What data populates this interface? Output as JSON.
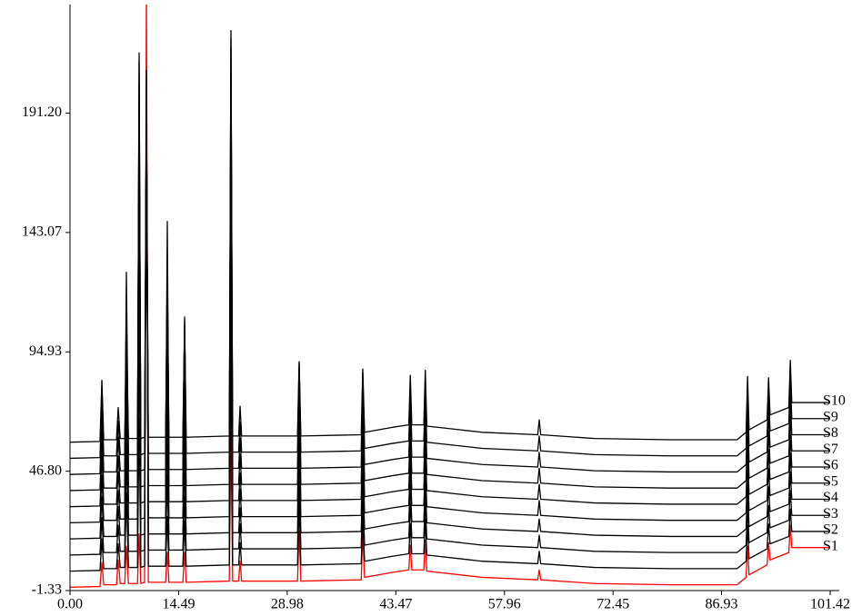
{
  "chart_data": {
    "type": "line",
    "x": [
      0,
      4,
      4.25,
      4.5,
      6.2,
      6.43,
      6.7,
      7.3,
      7.52,
      7.8,
      9,
      9.22,
      9.45,
      9.95,
      10.19,
      10.45,
      12.75,
      12.98,
      13.2,
      15.05,
      15.29,
      15.5,
      21.25,
      21.47,
      21.7,
      22.5,
      22.69,
      22.9,
      30.35,
      30.57,
      30.8,
      38.85,
      39.06,
      39.3,
      43,
      45.2,
      45.4,
      45.6,
      47.2,
      47.4,
      47.6,
      55,
      62.4,
      62.6,
      62.8,
      70,
      80,
      89,
      90.2,
      90.4,
      90.6,
      93,
      93.2,
      93.4,
      95.9,
      96.1,
      96.3,
      98,
      101.42
    ],
    "series": [
      {
        "name": "S1",
        "color": "#ff0000",
        "values": [
          0,
          0.3,
          10,
          1,
          1,
          11,
          1.5,
          1.5,
          16.5,
          1.5,
          1.5,
          21.5,
          1.5,
          2,
          242,
          2,
          2,
          14,
          2,
          2,
          14,
          2,
          2.5,
          62.5,
          2.5,
          2.5,
          10.5,
          2.5,
          2.5,
          22.5,
          2.5,
          3,
          21.5,
          4,
          6,
          7,
          17,
          7,
          7,
          19,
          6.5,
          4,
          3,
          7,
          3,
          1.5,
          1,
          1,
          4,
          16.5,
          5,
          9,
          18,
          11,
          14,
          25,
          16,
          16,
          16
        ]
      },
      {
        "name": "S2",
        "color": "#000000",
        "values": [
          6.5,
          6.8,
          19.5,
          7.5,
          7.5,
          17.5,
          8,
          8,
          38,
          8,
          8,
          68,
          8,
          8.5,
          208.5,
          8.5,
          8.5,
          28.5,
          8.5,
          8.5,
          26.5,
          8.5,
          9,
          99,
          9,
          9,
          18,
          9,
          9,
          34,
          9,
          9.5,
          30,
          10.5,
          12.5,
          13.5,
          25.5,
          13.5,
          13.5,
          27.5,
          13,
          10.5,
          9.5,
          14.5,
          9.5,
          8,
          7.5,
          7.5,
          10.5,
          25,
          11.5,
          15.5,
          25.5,
          17.5,
          20.5,
          31.5,
          22.5,
          22.5,
          22.5
        ]
      },
      {
        "name": "S3",
        "color": "#000000",
        "values": [
          13,
          13.3,
          28,
          14,
          14,
          25,
          14.5,
          14.5,
          54.5,
          14.5,
          14.5,
          104.5,
          14.5,
          15,
          205,
          15,
          15,
          45,
          15,
          15,
          37,
          15,
          15.5,
          125.5,
          15.5,
          15.5,
          25.5,
          15.5,
          15.5,
          43.5,
          15.5,
          16,
          38.5,
          17,
          19,
          20,
          34,
          20,
          20,
          35,
          19.5,
          17,
          16,
          21,
          16,
          14.5,
          14,
          14,
          17,
          32.5,
          18,
          22,
          33,
          24,
          27,
          39,
          29,
          29,
          29
        ]
      },
      {
        "name": "S4",
        "color": "#000000",
        "values": [
          19.5,
          19.8,
          36.5,
          20.5,
          20.5,
          32.5,
          21,
          21,
          71,
          21,
          21,
          141,
          21,
          21.5,
          201.5,
          21.5,
          21.5,
          61.5,
          21.5,
          21.5,
          49.5,
          21.5,
          22,
          152,
          22,
          22,
          32,
          22,
          22,
          52,
          22,
          22.5,
          47,
          23.5,
          25.5,
          26.5,
          41.5,
          26.5,
          26.5,
          42.5,
          26,
          23.5,
          22.5,
          27.5,
          22.5,
          21,
          20.5,
          20.5,
          23.5,
          40,
          24.5,
          28.5,
          40.5,
          30.5,
          33.5,
          46.5,
          35.5,
          35.5,
          35.5
        ]
      },
      {
        "name": "S5",
        "color": "#000000",
        "values": [
          26,
          26.3,
          45,
          27,
          27,
          39,
          27.5,
          27.5,
          87.5,
          27.5,
          27.5,
          167.5,
          27.5,
          28,
          198,
          28,
          28,
          83,
          28,
          28,
          63,
          28,
          28.5,
          178.5,
          28.5,
          28.5,
          39.5,
          28.5,
          28.5,
          60.5,
          28.5,
          29,
          55.5,
          30,
          32,
          33,
          49,
          33,
          33,
          50,
          32.5,
          30,
          29,
          35,
          29,
          27.5,
          27,
          27,
          30,
          47.5,
          31,
          35,
          48,
          37,
          40,
          54,
          42,
          42,
          42
        ]
      },
      {
        "name": "S6",
        "color": "#000000",
        "values": [
          32.5,
          32.8,
          53.5,
          33.5,
          33.5,
          46.5,
          34,
          34,
          104,
          34,
          34,
          194,
          34,
          34.5,
          194.5,
          34.5,
          34.5,
          104.5,
          34.5,
          34.5,
          79.5,
          34.5,
          35,
          200,
          35,
          35,
          46,
          35,
          35,
          69,
          35,
          35.5,
          64,
          36.5,
          38.5,
          39.5,
          56.5,
          39.5,
          39.5,
          57.5,
          39,
          36.5,
          35.5,
          41.5,
          35.5,
          34,
          33.5,
          33.5,
          36.5,
          55,
          37.5,
          41.5,
          55.5,
          43.5,
          46.5,
          61.5,
          48.5,
          48.5,
          48.5
        ]
      },
      {
        "name": "S7",
        "color": "#000000",
        "values": [
          39,
          39.3,
          62,
          40,
          40,
          53,
          40.5,
          40.5,
          115.5,
          40.5,
          40.5,
          215.5,
          40.5,
          41,
          191,
          41,
          41,
          126,
          41,
          41,
          96,
          41,
          41.5,
          221.5,
          41.5,
          41.5,
          53.5,
          41.5,
          41.5,
          77.5,
          41.5,
          42,
          72.5,
          43,
          45,
          46,
          64,
          46,
          46,
          65,
          45.5,
          43,
          42,
          48,
          42,
          40.5,
          40,
          40,
          43,
          63.5,
          44,
          48,
          63,
          50,
          53,
          69,
          55,
          55,
          55
        ]
      },
      {
        "name": "S8",
        "color": "#000000",
        "values": [
          45.5,
          45.8,
          70.5,
          46.5,
          46.5,
          60.5,
          47,
          47,
          127,
          47,
          47,
          212,
          47,
          47.5,
          187.5,
          47.5,
          47.5,
          147.5,
          47.5,
          47.5,
          107.5,
          47.5,
          48,
          218,
          48,
          48,
          60,
          48,
          48,
          85,
          48,
          48.5,
          81,
          49.5,
          51.5,
          52.5,
          71.5,
          52.5,
          52.5,
          72.5,
          52,
          49.5,
          48.5,
          54.5,
          48.5,
          47,
          46.5,
          46.5,
          49.5,
          72,
          50.5,
          54.5,
          70.5,
          56.5,
          59.5,
          76.5,
          61.5,
          61.5,
          61.5
        ]
      },
      {
        "name": "S9",
        "color": "#000000",
        "values": [
          52,
          52.3,
          78,
          53,
          53,
          67,
          53.5,
          53.5,
          108.5,
          53.5,
          53.5,
          203.5,
          53.5,
          54,
          194,
          54,
          54,
          129,
          54,
          54,
          109,
          54,
          54.5,
          224.5,
          54.5,
          54.5,
          66.5,
          54.5,
          54.5,
          90.5,
          54.5,
          55,
          86.5,
          56,
          58,
          59,
          79,
          59,
          59,
          80,
          58.5,
          56,
          55,
          61,
          55,
          53.5,
          53,
          53,
          56,
          79.5,
          57,
          61,
          78,
          63,
          66,
          84,
          68,
          68,
          68
        ]
      },
      {
        "name": "S10",
        "color": "#000000",
        "values": [
          58.5,
          58.8,
          83.5,
          59.5,
          59.5,
          72.5,
          60,
          60,
          100,
          60,
          60,
          190,
          60,
          60.5,
          190.5,
          60.5,
          60.5,
          120.5,
          60.5,
          60.5,
          105.5,
          60.5,
          61,
          201,
          61,
          61,
          73,
          61,
          61,
          91,
          61,
          61.5,
          88,
          62.5,
          64.5,
          65.5,
          85.5,
          65.5,
          65.5,
          87.5,
          65,
          62.5,
          61.5,
          67.5,
          61.5,
          60,
          59.5,
          59.5,
          62.5,
          85,
          63.5,
          67.5,
          84.5,
          69.5,
          72.5,
          91.5,
          74.5,
          74.5,
          74.5
        ]
      }
    ],
    "xlim": [
      0,
      101.42
    ],
    "xticks": [
      {
        "value": 0,
        "label": "0.00"
      },
      14.49,
      28.98,
      43.47,
      57.96,
      72.45,
      86.93,
      101.42
    ],
    "ylim": [
      -1.33,
      235
    ],
    "yticks": [
      -1.33,
      {
        "value": 46.8,
        "label": "46.80"
      },
      94.93,
      143.07,
      {
        "value": 191.2,
        "label": "191.20"
      }
    ],
    "grid": false
  }
}
